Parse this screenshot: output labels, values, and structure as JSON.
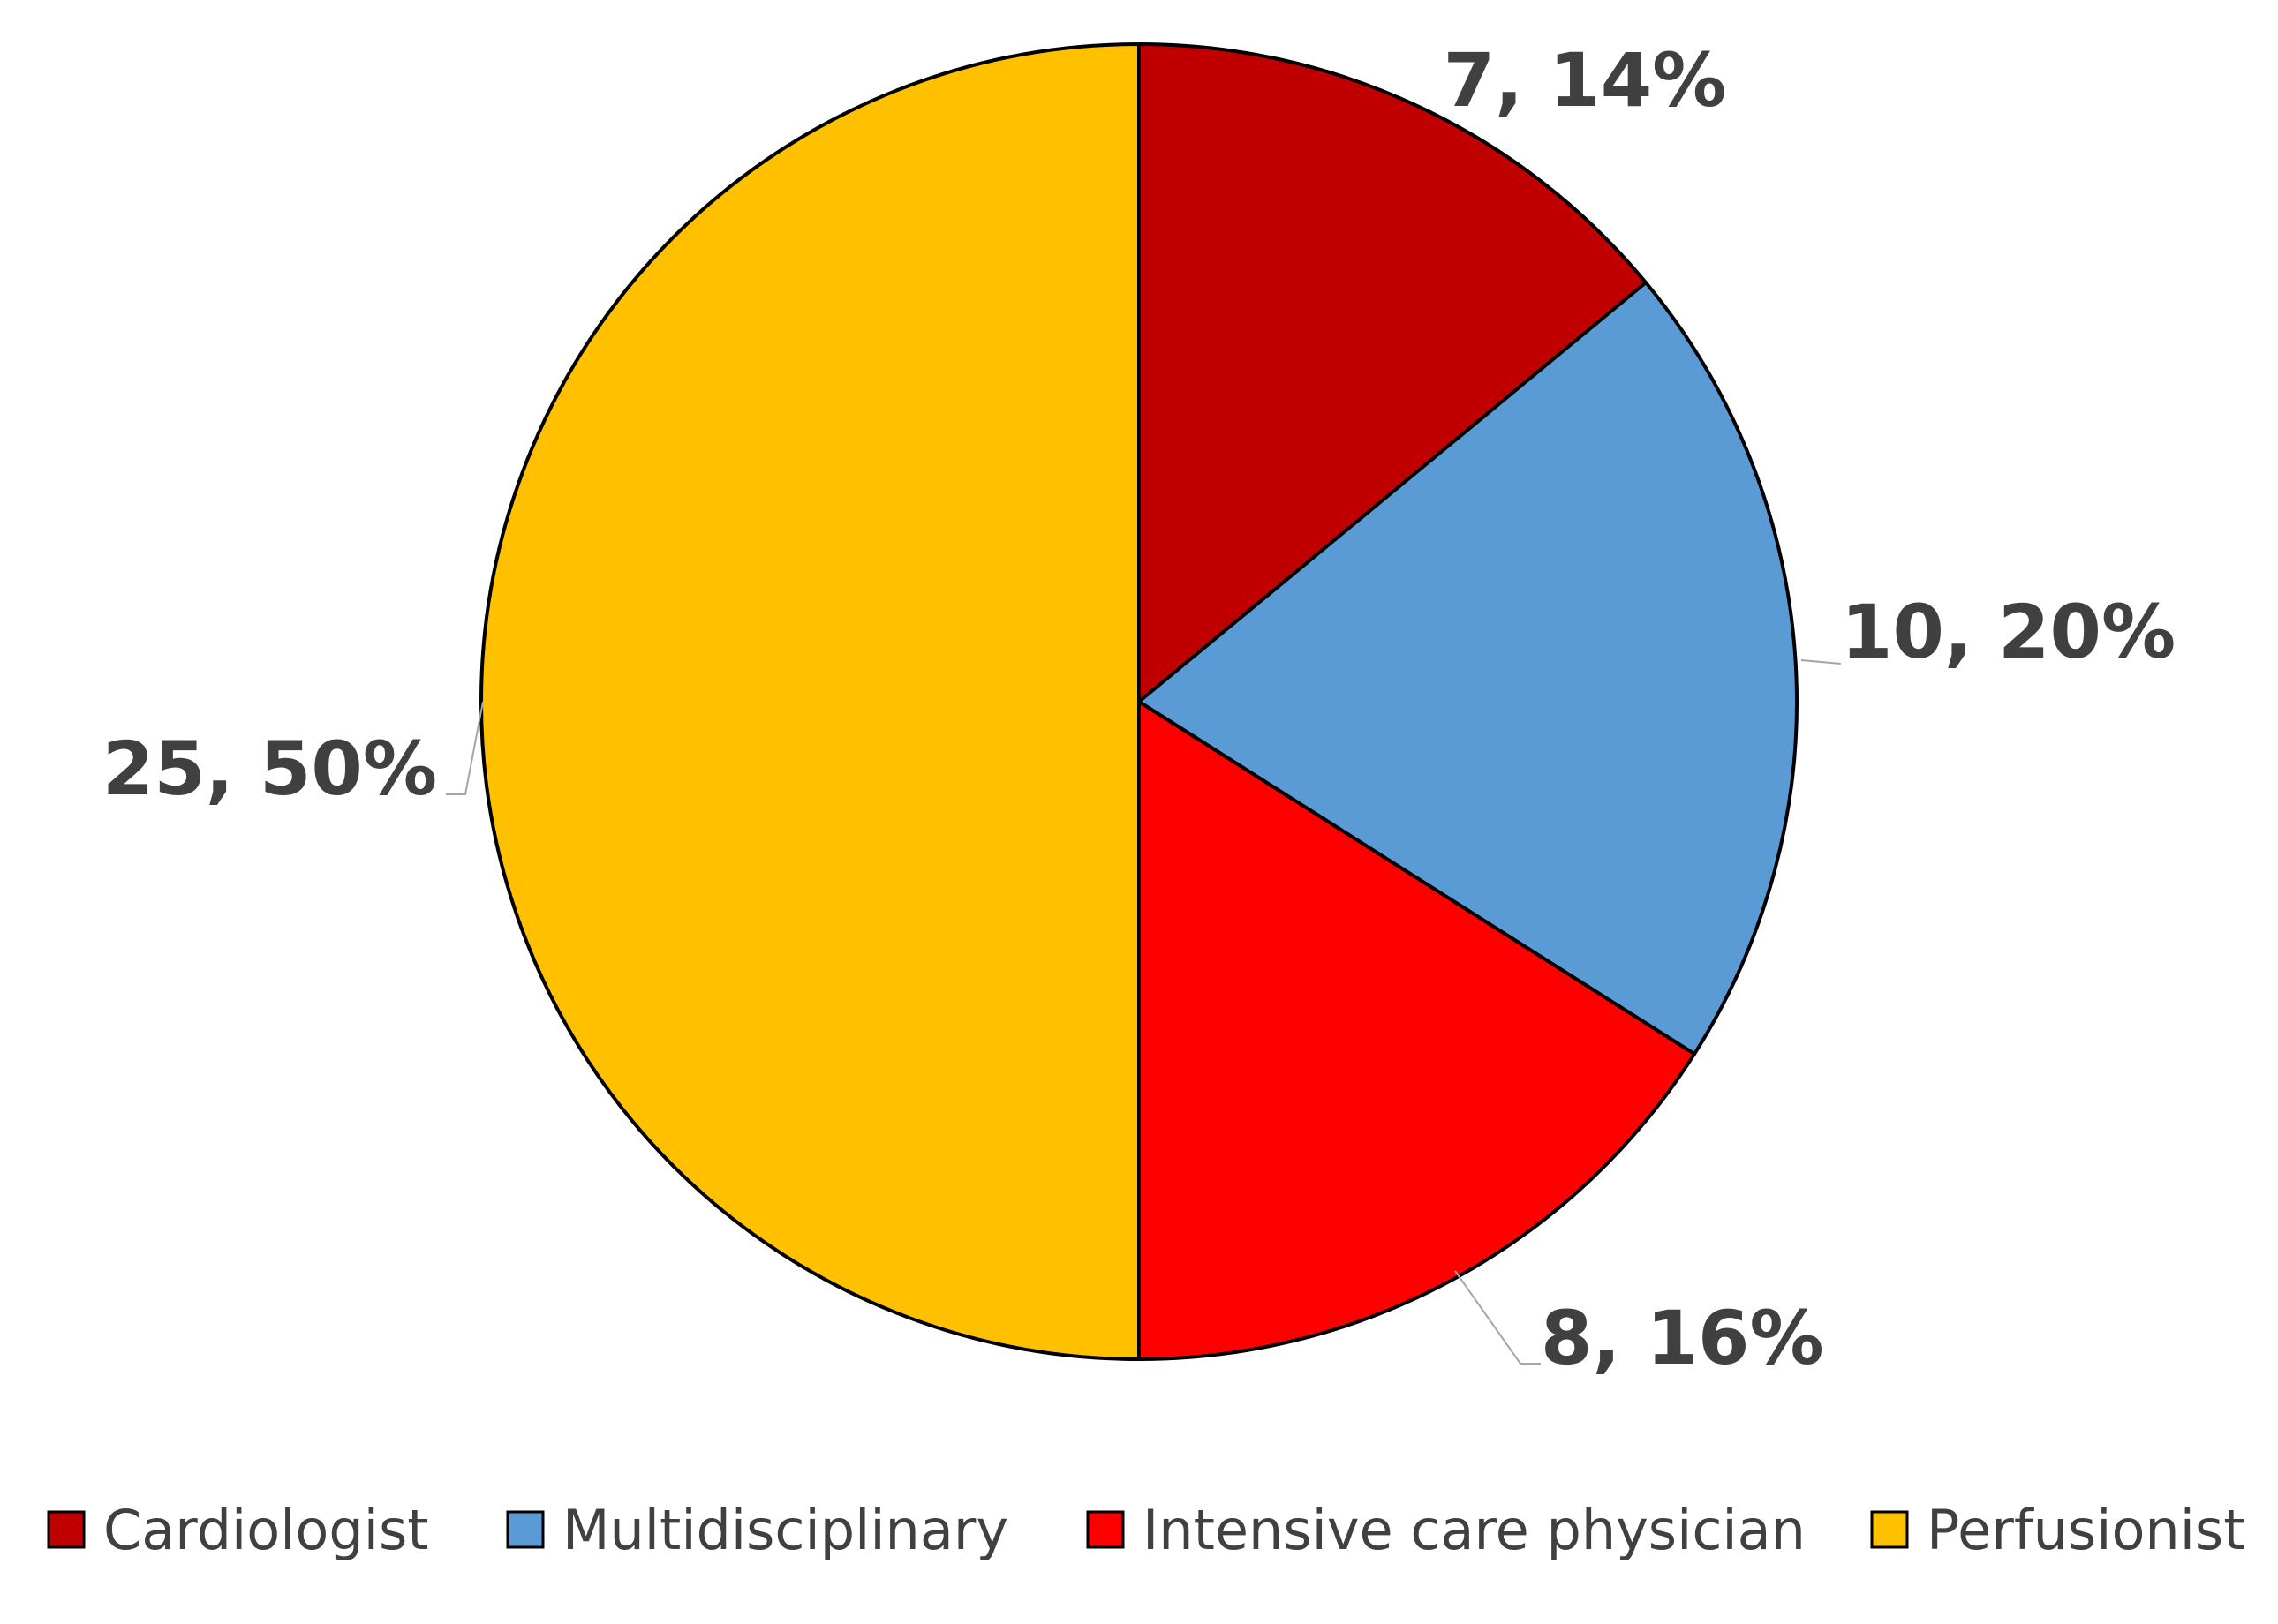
{
  "chart_data": {
    "type": "pie",
    "series": [
      {
        "values": [
          7,
          10,
          8,
          25
        ]
      }
    ],
    "categories": [
      "Cardiologist",
      "Multidisciplinary",
      "Intensive care physician",
      "Perfusionist"
    ],
    "data_labels": [
      "7, 14%",
      "10, 20%",
      "8, 16%",
      "25, 50%"
    ],
    "colors": [
      "#C00000",
      "#5B9BD5",
      "#FF0000",
      "#FFC000"
    ],
    "start_angle_deg": 0,
    "direction": "clockwise",
    "legend_position": "bottom"
  }
}
